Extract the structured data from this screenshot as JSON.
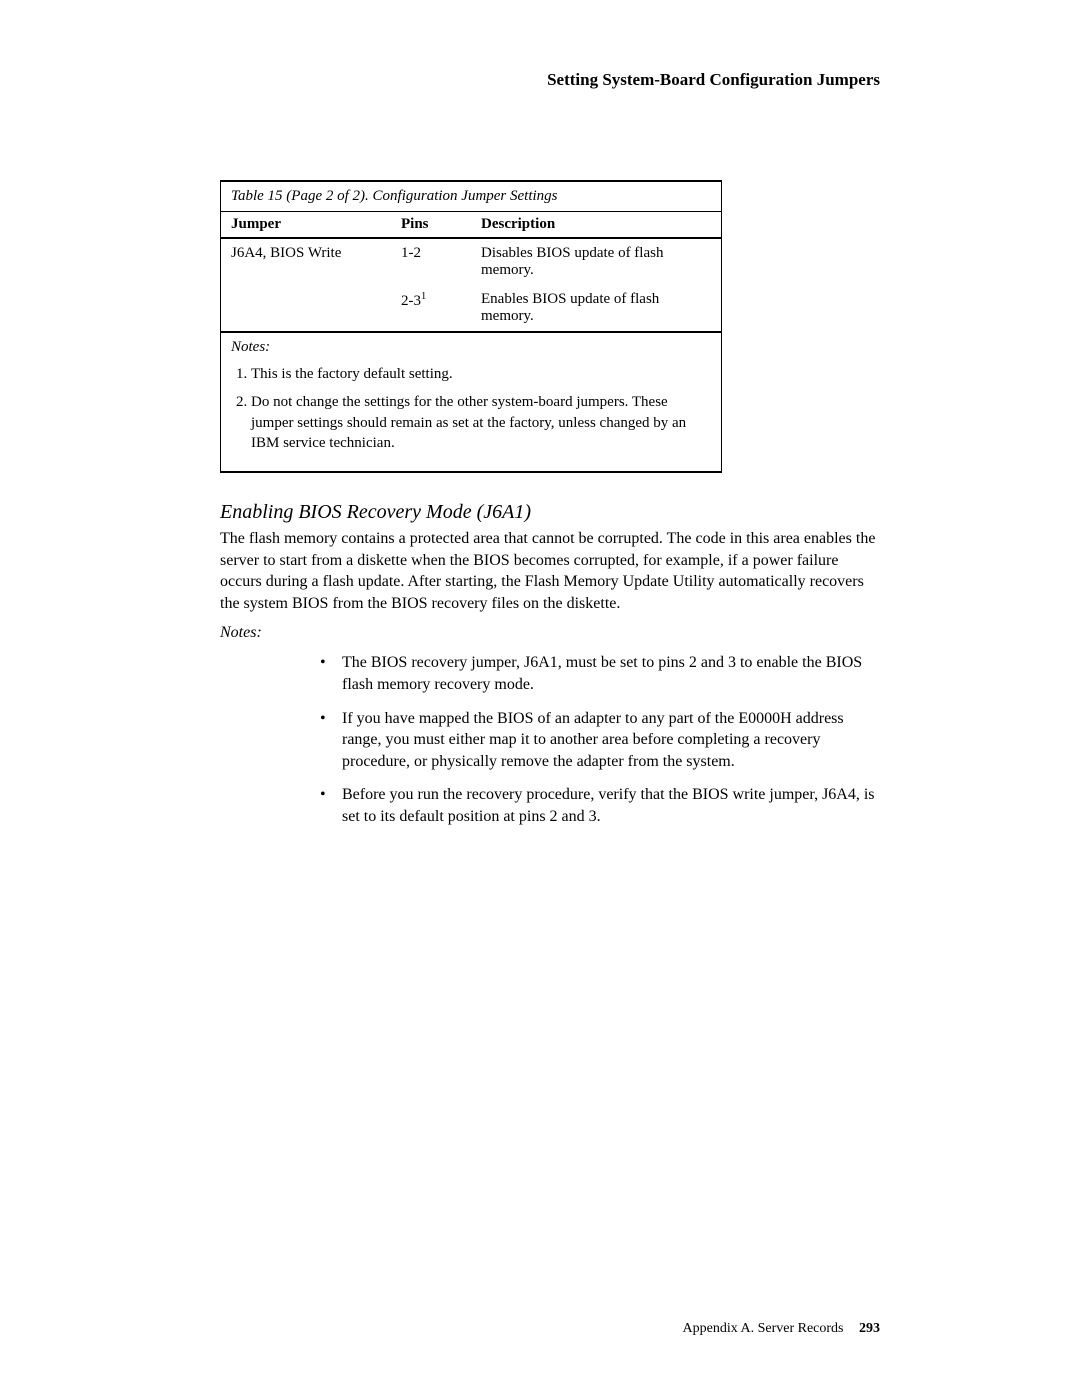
{
  "runningHead": "Setting System-Board Configuration Jumpers",
  "table": {
    "caption": "Table 15 (Page 2 of 2). Configuration Jumper Settings",
    "headers": {
      "jumper": "Jumper",
      "pins": "Pins",
      "description": "Description"
    },
    "rows": [
      {
        "jumper": "J6A4, BIOS Write",
        "pins": "1-2",
        "desc": "Disables BIOS update of flash memory."
      },
      {
        "jumper": "",
        "pins_base": "2-3",
        "pins_sup": "1",
        "desc": "Enables BIOS update of flash memory."
      }
    ],
    "notesTitle": "Notes:",
    "notes": [
      "This is the factory default setting.",
      "Do not change the settings for the other system-board jumpers. These jumper settings should remain as set at the factory, unless changed by an IBM service technician."
    ]
  },
  "section": {
    "heading": "Enabling BIOS Recovery Mode (J6A1)",
    "para": "The flash memory contains a protected area that cannot be corrupted.  The code in this area enables the server to start from a diskette when the BIOS becomes corrupted, for example, if a power failure occurs during a flash update.  After starting, the Flash Memory Update Utility automatically recovers the system BIOS from the BIOS recovery files on the diskette.",
    "notesLabel": "Notes:",
    "bullets": [
      "The BIOS recovery jumper, J6A1, must be set to pins 2 and 3 to enable the BIOS flash memory recovery mode.",
      "If you have mapped the BIOS of an adapter to any part of the E0000H address range, you must either map it to another area before completing a recovery procedure, or physically remove the adapter from the system.",
      "Before you run the recovery procedure, verify that the BIOS write jumper, J6A4, is set to its default position at pins 2 and 3."
    ]
  },
  "footer": {
    "text": "Appendix A.  Server Records",
    "page": "293"
  },
  "style": {
    "bullet_glyph": "•"
  }
}
